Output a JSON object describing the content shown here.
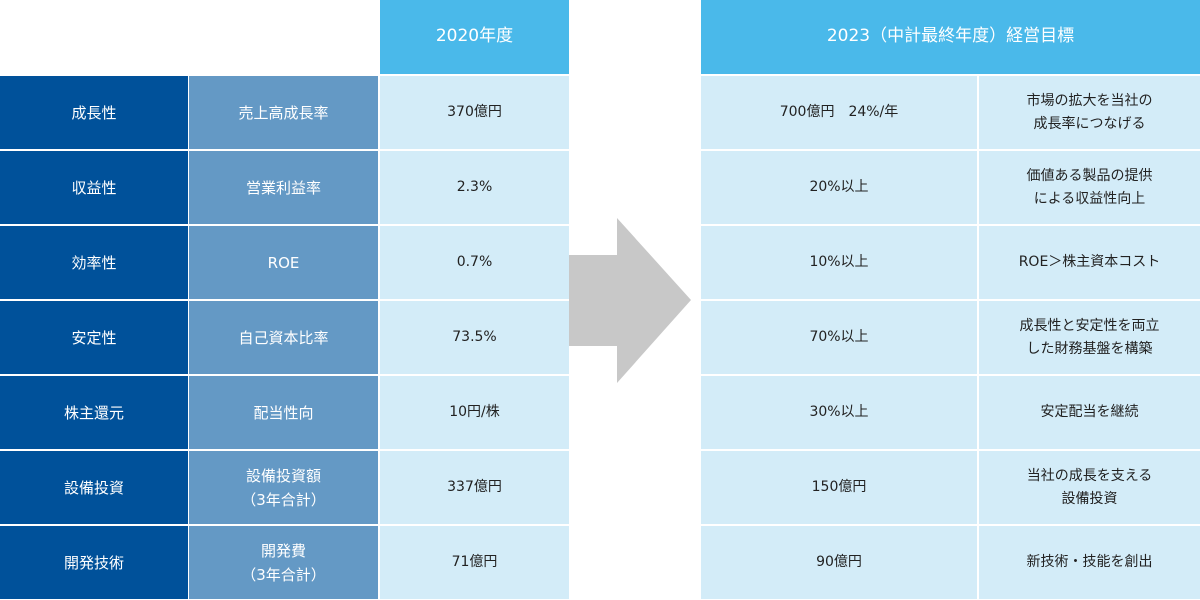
{
  "headers": {
    "year_2020": "2020年度",
    "target_2023": "2023（中計最終年度）経営目標"
  },
  "rows": [
    {
      "category": "成長性",
      "metric": "売上高成長率",
      "value_2020": "370億円",
      "target_2023": "700億円　24%/年",
      "note": "市場の拡大を当社の\n成長率につなげる"
    },
    {
      "category": "収益性",
      "metric": "営業利益率",
      "value_2020": "2.3%",
      "target_2023": "20%以上",
      "note": "価値ある製品の提供\nによる収益性向上"
    },
    {
      "category": "効率性",
      "metric": "ROE",
      "value_2020": "0.7%",
      "target_2023": "10%以上",
      "note": "ROE＞株主資本コスト"
    },
    {
      "category": "安定性",
      "metric": "自己資本比率",
      "value_2020": "73.5%",
      "target_2023": "70%以上",
      "note": "成長性と安定性を両立\nした財務基盤を構築"
    },
    {
      "category": "株主還元",
      "metric": "配当性向",
      "value_2020": "10円/株",
      "target_2023": "30%以上",
      "note": "安定配当を継続"
    },
    {
      "category": "設備投資",
      "metric": "設備投資額\n（3年合計）",
      "value_2020": "337億円",
      "target_2023": "150億円",
      "note": "当社の成長を支える\n設備投資"
    },
    {
      "category": "開発技術",
      "metric": "開発費\n（3年合計）",
      "value_2020": "71億円",
      "target_2023": "90億円",
      "note": "新技術・技能を創出"
    }
  ],
  "colors": {
    "header": "#4ab9ea",
    "category": "#00519a",
    "metric": "#6499c5",
    "value": "#d3ecf8",
    "arrow": "#c8c8c8"
  },
  "icons": {
    "arrow": "right-arrow-icon"
  }
}
